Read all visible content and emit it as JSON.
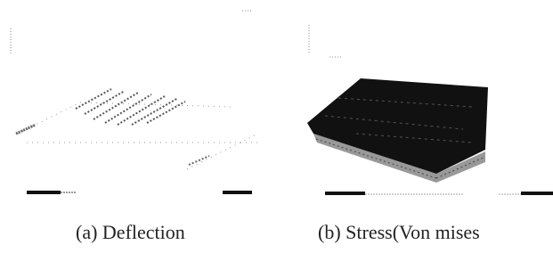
{
  "figure": {
    "panels": [
      {
        "caption": "(a) Deflection"
      },
      {
        "caption": "(b) Stress(Von mises"
      }
    ]
  }
}
